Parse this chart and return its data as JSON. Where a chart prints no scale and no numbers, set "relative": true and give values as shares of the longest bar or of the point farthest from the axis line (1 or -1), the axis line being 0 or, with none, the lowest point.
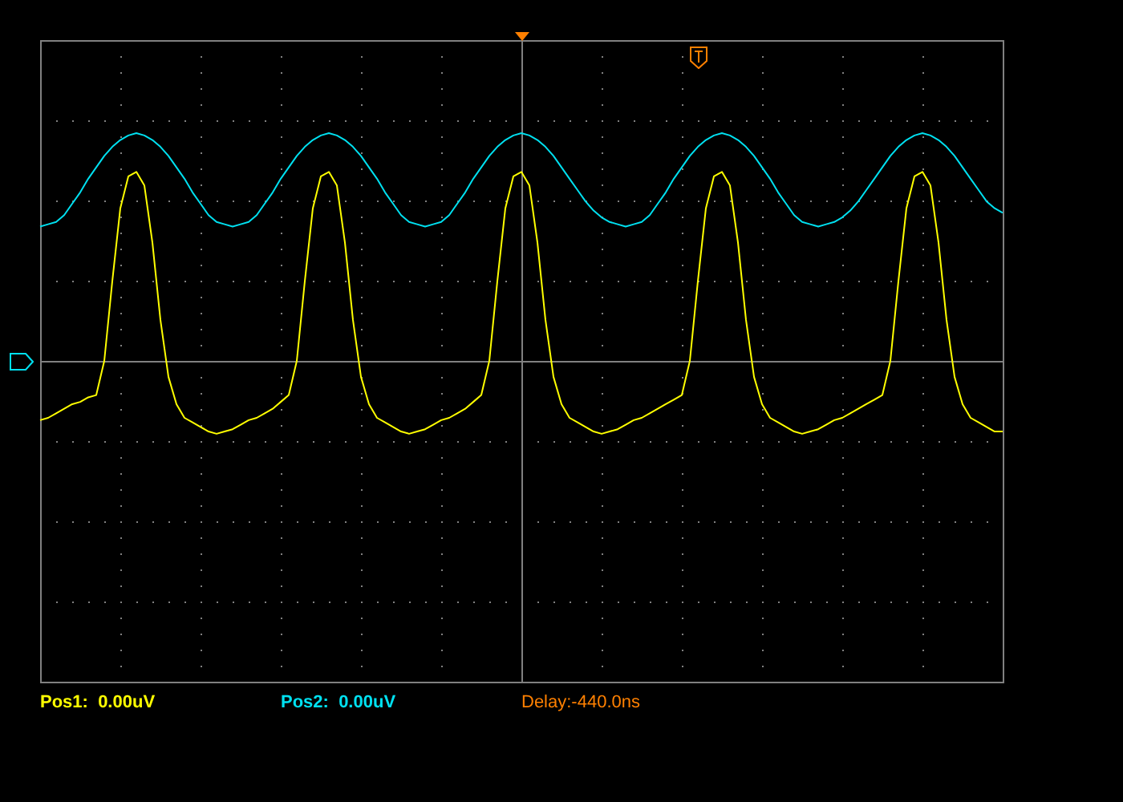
{
  "chart_data": {
    "type": "line",
    "relative": true,
    "grid": true,
    "legend": false,
    "marker": "none",
    "annotations": [
      "Pos1:  0.00uV",
      "Pos2:  0.00uV",
      "Delay:-440.0ns"
    ],
    "categories": [
      null,
      null,
      null,
      null,
      null,
      null,
      null,
      null,
      null,
      null,
      null,
      null,
      null,
      null,
      null,
      null,
      null,
      null,
      null,
      null,
      null,
      null,
      null,
      null,
      null,
      null,
      null,
      null,
      null,
      null,
      null,
      null,
      null,
      null,
      null,
      null,
      null,
      null,
      null,
      null,
      null,
      null,
      null,
      null,
      null,
      null,
      null,
      null,
      null,
      null,
      null,
      null,
      null,
      null,
      null,
      null,
      null,
      null,
      null,
      null,
      null,
      null,
      null,
      null,
      null,
      null,
      null,
      null,
      null,
      null,
      null,
      null,
      null,
      null,
      null,
      null,
      null,
      null,
      null,
      null,
      null,
      null,
      null,
      null,
      null,
      null,
      null,
      null,
      null,
      null,
      null,
      null,
      null,
      null,
      null,
      null,
      null,
      null,
      null,
      null,
      null,
      null,
      null,
      null,
      null,
      null,
      null,
      null,
      null,
      null,
      null,
      null,
      null,
      null,
      null,
      null,
      null,
      null,
      null,
      null,
      null
    ],
    "series": [
      {
        "color": "#ffff00",
        "values": [
          -0.26,
          -0.25,
          -0.23,
          -0.21,
          -0.19,
          -0.18,
          -0.16,
          -0.15,
          0.0,
          0.35,
          0.67,
          0.81,
          0.83,
          0.77,
          0.52,
          0.18,
          -0.07,
          -0.19,
          -0.25,
          -0.27,
          -0.29,
          -0.31,
          -0.32,
          -0.31,
          -0.3,
          -0.28,
          -0.26,
          -0.25,
          -0.23,
          -0.21,
          -0.18,
          -0.15,
          0.0,
          0.35,
          0.67,
          0.81,
          0.83,
          0.77,
          0.52,
          0.18,
          -0.07,
          -0.19,
          -0.25,
          -0.27,
          -0.29,
          -0.31,
          -0.32,
          -0.31,
          -0.3,
          -0.28,
          -0.26,
          -0.25,
          -0.23,
          -0.21,
          -0.18,
          -0.15,
          0.0,
          0.35,
          0.67,
          0.81,
          0.83,
          0.77,
          0.52,
          0.18,
          -0.07,
          -0.19,
          -0.25,
          -0.27,
          -0.29,
          -0.31,
          -0.32,
          -0.31,
          -0.3,
          -0.28,
          -0.26,
          -0.25,
          -0.23,
          -0.21,
          -0.19,
          -0.17,
          -0.15,
          0.0,
          0.35,
          0.67,
          0.81,
          0.83,
          0.77,
          0.52,
          0.18,
          -0.07,
          -0.19,
          -0.25,
          -0.27,
          -0.29,
          -0.31,
          -0.32,
          -0.31,
          -0.3,
          -0.28,
          -0.26,
          -0.25,
          -0.23,
          -0.21,
          -0.19,
          -0.17,
          -0.15,
          0.0,
          0.35,
          0.67,
          0.81,
          0.83,
          0.77,
          0.52,
          0.18,
          -0.07,
          -0.19,
          -0.25,
          -0.27,
          -0.29,
          -0.31,
          -0.31
        ]
      },
      {
        "color": "#00e0f0",
        "values": [
          0.59,
          0.6,
          0.61,
          0.64,
          0.69,
          0.74,
          0.8,
          0.85,
          0.9,
          0.94,
          0.97,
          0.99,
          1.0,
          0.99,
          0.97,
          0.94,
          0.9,
          0.85,
          0.8,
          0.74,
          0.69,
          0.64,
          0.61,
          0.6,
          0.59,
          0.6,
          0.61,
          0.64,
          0.69,
          0.74,
          0.8,
          0.85,
          0.9,
          0.94,
          0.97,
          0.99,
          1.0,
          0.99,
          0.97,
          0.94,
          0.9,
          0.85,
          0.8,
          0.74,
          0.69,
          0.64,
          0.61,
          0.6,
          0.59,
          0.6,
          0.61,
          0.64,
          0.69,
          0.74,
          0.8,
          0.85,
          0.9,
          0.94,
          0.97,
          0.99,
          1.0,
          0.99,
          0.97,
          0.94,
          0.9,
          0.85,
          0.8,
          0.75,
          0.7,
          0.66,
          0.63,
          0.61,
          0.6,
          0.59,
          0.6,
          0.61,
          0.64,
          0.69,
          0.74,
          0.8,
          0.85,
          0.9,
          0.94,
          0.97,
          0.99,
          1.0,
          0.99,
          0.97,
          0.94,
          0.9,
          0.85,
          0.8,
          0.74,
          0.69,
          0.64,
          0.61,
          0.6,
          0.59,
          0.6,
          0.61,
          0.63,
          0.66,
          0.7,
          0.75,
          0.8,
          0.85,
          0.9,
          0.94,
          0.97,
          0.99,
          1.0,
          0.99,
          0.97,
          0.94,
          0.9,
          0.85,
          0.8,
          0.75,
          0.7,
          0.67,
          0.65
        ]
      }
    ]
  }
}
